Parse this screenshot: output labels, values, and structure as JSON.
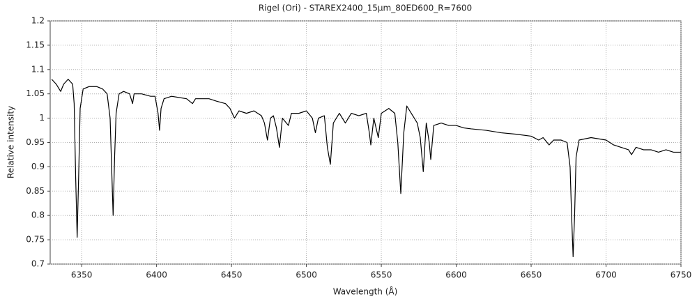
{
  "chart_data": {
    "type": "line",
    "title": "Rigel (Ori) - STAREX2400_15µm_80ED600_R=7600",
    "x_label": "Wavelength (Å)",
    "y_label": "Relative intensity",
    "color": "#000000",
    "grid": true,
    "xlim": [
      6329,
      6750
    ],
    "ylim": [
      0.7,
      1.2
    ],
    "xticks": [
      6350,
      6400,
      6450,
      6500,
      6550,
      6600,
      6650,
      6700,
      6750
    ],
    "yticks": [
      0.7,
      0.75,
      0.8,
      0.85,
      0.9,
      0.95,
      1,
      1.05,
      1.1,
      1.15,
      1.2
    ],
    "x": [
      6330,
      6333,
      6336,
      6338,
      6341,
      6344,
      6345,
      6346,
      6347,
      6348,
      6349,
      6351,
      6355,
      6360,
      6364,
      6367,
      6369,
      6370,
      6371,
      6372,
      6373,
      6375,
      6378,
      6382,
      6384,
      6385,
      6390,
      6396,
      6399,
      6401,
      6402,
      6403,
      6405,
      6410,
      6420,
      6424,
      6426,
      6435,
      6440,
      6446,
      6449,
      6452,
      6455,
      6460,
      6465,
      6470,
      6472,
      6474,
      6476,
      6478,
      6480,
      6482,
      6484,
      6488,
      6490,
      6495,
      6500,
      6504,
      6506,
      6508,
      6512,
      6514,
      6516,
      6518,
      6522,
      6526,
      6530,
      6535,
      6540,
      6542,
      6543,
      6545,
      6548,
      6550,
      6555,
      6559,
      6561,
      6563,
      6565,
      6567,
      6570,
      6574,
      6576,
      6578,
      6580,
      6582,
      6583,
      6585,
      6590,
      6595,
      6600,
      6605,
      6610,
      6620,
      6630,
      6640,
      6650,
      6655,
      6658,
      6662,
      6665,
      6670,
      6674,
      6676,
      6677,
      6678,
      6679,
      6680,
      6682,
      6690,
      6700,
      6705,
      6710,
      6715,
      6717,
      6720,
      6725,
      6730,
      6735,
      6740,
      6745,
      6750
    ],
    "values": [
      1.08,
      1.07,
      1.055,
      1.07,
      1.08,
      1.07,
      1.03,
      0.88,
      0.755,
      0.88,
      1.02,
      1.06,
      1.065,
      1.065,
      1.06,
      1.05,
      1.0,
      0.9,
      0.8,
      0.92,
      1.01,
      1.05,
      1.055,
      1.05,
      1.03,
      1.05,
      1.05,
      1.045,
      1.045,
      1.01,
      0.975,
      1.02,
      1.04,
      1.045,
      1.04,
      1.03,
      1.04,
      1.04,
      1.035,
      1.03,
      1.02,
      1.0,
      1.015,
      1.01,
      1.015,
      1.005,
      0.99,
      0.955,
      1.0,
      1.005,
      0.98,
      0.94,
      1.0,
      0.985,
      1.01,
      1.01,
      1.015,
      1.0,
      0.97,
      1.0,
      1.005,
      0.94,
      0.905,
      0.99,
      1.01,
      0.99,
      1.01,
      1.005,
      1.01,
      0.97,
      0.945,
      1.0,
      0.96,
      1.01,
      1.02,
      1.01,
      0.95,
      0.845,
      0.97,
      1.025,
      1.01,
      0.99,
      0.96,
      0.89,
      0.99,
      0.95,
      0.915,
      0.985,
      0.99,
      0.985,
      0.985,
      0.98,
      0.978,
      0.975,
      0.97,
      0.967,
      0.963,
      0.955,
      0.96,
      0.945,
      0.955,
      0.955,
      0.95,
      0.9,
      0.8,
      0.715,
      0.8,
      0.92,
      0.955,
      0.96,
      0.955,
      0.945,
      0.94,
      0.935,
      0.925,
      0.94,
      0.935,
      0.935,
      0.93,
      0.935,
      0.93,
      0.93
    ]
  }
}
